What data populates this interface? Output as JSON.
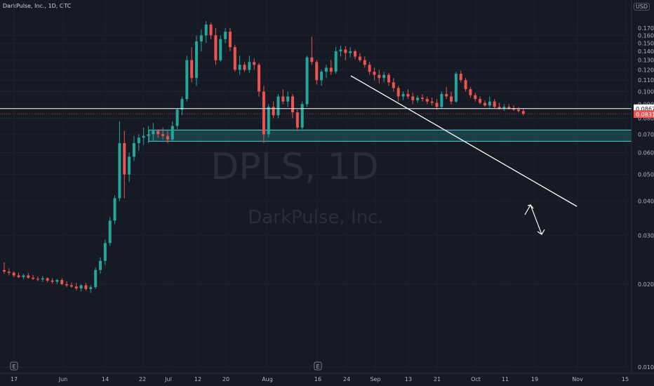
{
  "header": {
    "title": "DarkPulse, Inc., 1D, OTC"
  },
  "currency": "USD",
  "watermark": {
    "symbol": "DPLS, 1D",
    "name": "DarkPulse, Inc."
  },
  "colors": {
    "up": "#26a69a",
    "down": "#ef5350",
    "background": "#161a25",
    "zone": "#26a69a"
  },
  "chart_data": {
    "type": "candlestick",
    "y_scale": "log",
    "y_ticks": [
      "0.1700",
      "0.1600",
      "0.1500",
      "0.1400",
      "0.1300",
      "0.1200",
      "0.1100",
      "0.1000",
      "0.0900",
      "0.0800",
      "0.0700",
      "0.0600",
      "0.0500",
      "0.0400",
      "0.0300",
      "0.0200",
      "0.0100"
    ],
    "x_ticks": [
      "17",
      "Jun",
      "14",
      "22",
      "Jul",
      "12",
      "20",
      "Aug",
      "16",
      "24",
      "Sep",
      "13",
      "21",
      "Oct",
      "11",
      "19",
      "Nov",
      "15"
    ],
    "events": [
      "E",
      "E"
    ],
    "price_labels": {
      "horizontal": "0.0867",
      "last": "0.0831"
    },
    "support_zone": {
      "top": 0.0725,
      "bottom": 0.066
    },
    "ohlc": [
      [
        0.0225,
        0.024,
        0.0218,
        0.0222
      ],
      [
        0.0222,
        0.0228,
        0.0215,
        0.022
      ],
      [
        0.022,
        0.0223,
        0.0212,
        0.0215
      ],
      [
        0.0215,
        0.022,
        0.021,
        0.0212
      ],
      [
        0.0212,
        0.0218,
        0.0208,
        0.0215
      ],
      [
        0.0215,
        0.0219,
        0.0209,
        0.0211
      ],
      [
        0.0211,
        0.0216,
        0.0207,
        0.0209
      ],
      [
        0.0209,
        0.0213,
        0.0205,
        0.0208
      ],
      [
        0.0208,
        0.0214,
        0.0204,
        0.021
      ],
      [
        0.021,
        0.0212,
        0.0203,
        0.0206
      ],
      [
        0.0206,
        0.021,
        0.0201,
        0.0204
      ],
      [
        0.0204,
        0.0209,
        0.02,
        0.0207
      ],
      [
        0.0207,
        0.021,
        0.0198,
        0.02
      ],
      [
        0.02,
        0.0205,
        0.0195,
        0.0198
      ],
      [
        0.0198,
        0.0203,
        0.0194,
        0.0196
      ],
      [
        0.0196,
        0.0202,
        0.019,
        0.0193
      ],
      [
        0.0193,
        0.02,
        0.0188,
        0.0198
      ],
      [
        0.0198,
        0.0202,
        0.0189,
        0.0192
      ],
      [
        0.0192,
        0.0198,
        0.0186,
        0.0195
      ],
      [
        0.0195,
        0.023,
        0.0192,
        0.0225
      ],
      [
        0.0225,
        0.025,
        0.0218,
        0.0243
      ],
      [
        0.0243,
        0.029,
        0.0235,
        0.0282
      ],
      [
        0.0282,
        0.035,
        0.0275,
        0.034
      ],
      [
        0.034,
        0.042,
        0.033,
        0.041
      ],
      [
        0.041,
        0.078,
        0.04,
        0.065
      ],
      [
        0.065,
        0.072,
        0.041,
        0.05
      ],
      [
        0.05,
        0.06,
        0.047,
        0.058
      ],
      [
        0.058,
        0.069,
        0.056,
        0.065
      ],
      [
        0.065,
        0.07,
        0.061,
        0.068
      ],
      [
        0.068,
        0.074,
        0.064,
        0.069
      ],
      [
        0.069,
        0.075,
        0.065,
        0.07
      ],
      [
        0.07,
        0.077,
        0.066,
        0.072
      ],
      [
        0.072,
        0.073,
        0.068,
        0.07
      ],
      [
        0.07,
        0.074,
        0.067,
        0.069
      ],
      [
        0.069,
        0.072,
        0.065,
        0.067
      ],
      [
        0.067,
        0.078,
        0.066,
        0.075
      ],
      [
        0.075,
        0.087,
        0.073,
        0.086
      ],
      [
        0.086,
        0.096,
        0.082,
        0.094
      ],
      [
        0.094,
        0.135,
        0.092,
        0.13
      ],
      [
        0.13,
        0.145,
        0.108,
        0.112
      ],
      [
        0.112,
        0.16,
        0.105,
        0.152
      ],
      [
        0.152,
        0.168,
        0.14,
        0.16
      ],
      [
        0.16,
        0.18,
        0.15,
        0.175
      ],
      [
        0.175,
        0.178,
        0.155,
        0.16
      ],
      [
        0.16,
        0.17,
        0.125,
        0.13
      ],
      [
        0.13,
        0.16,
        0.128,
        0.155
      ],
      [
        0.155,
        0.17,
        0.15,
        0.165
      ],
      [
        0.165,
        0.17,
        0.14,
        0.145
      ],
      [
        0.145,
        0.148,
        0.118,
        0.12
      ],
      [
        0.12,
        0.135,
        0.115,
        0.125
      ],
      [
        0.125,
        0.128,
        0.118,
        0.12
      ],
      [
        0.12,
        0.135,
        0.117,
        0.128
      ],
      [
        0.128,
        0.132,
        0.12,
        0.125
      ],
      [
        0.125,
        0.127,
        0.096,
        0.1
      ],
      [
        0.1,
        0.105,
        0.065,
        0.07
      ],
      [
        0.07,
        0.09,
        0.068,
        0.088
      ],
      [
        0.088,
        0.092,
        0.08,
        0.082
      ],
      [
        0.082,
        0.098,
        0.08,
        0.096
      ],
      [
        0.096,
        0.102,
        0.09,
        0.092
      ],
      [
        0.092,
        0.1,
        0.088,
        0.096
      ],
      [
        0.096,
        0.098,
        0.08,
        0.084
      ],
      [
        0.084,
        0.086,
        0.072,
        0.074
      ],
      [
        0.074,
        0.092,
        0.073,
        0.09
      ],
      [
        0.09,
        0.135,
        0.088,
        0.133
      ],
      [
        0.133,
        0.158,
        0.125,
        0.128
      ],
      [
        0.128,
        0.13,
        0.106,
        0.11
      ],
      [
        0.11,
        0.12,
        0.105,
        0.118
      ],
      [
        0.118,
        0.125,
        0.112,
        0.122
      ],
      [
        0.122,
        0.13,
        0.115,
        0.118
      ],
      [
        0.118,
        0.145,
        0.116,
        0.14
      ],
      [
        0.14,
        0.147,
        0.134,
        0.142
      ],
      [
        0.142,
        0.146,
        0.13,
        0.138
      ],
      [
        0.138,
        0.145,
        0.133,
        0.14
      ],
      [
        0.14,
        0.142,
        0.131,
        0.134
      ],
      [
        0.134,
        0.138,
        0.128,
        0.13
      ],
      [
        0.13,
        0.134,
        0.122,
        0.125
      ],
      [
        0.125,
        0.128,
        0.115,
        0.118
      ],
      [
        0.118,
        0.122,
        0.11,
        0.115
      ],
      [
        0.115,
        0.12,
        0.107,
        0.112
      ],
      [
        0.112,
        0.118,
        0.108,
        0.115
      ],
      [
        0.115,
        0.117,
        0.105,
        0.108
      ],
      [
        0.108,
        0.112,
        0.1,
        0.103
      ],
      [
        0.103,
        0.105,
        0.092,
        0.096
      ],
      [
        0.096,
        0.1,
        0.093,
        0.098
      ],
      [
        0.098,
        0.102,
        0.094,
        0.096
      ],
      [
        0.096,
        0.099,
        0.09,
        0.093
      ],
      [
        0.093,
        0.097,
        0.091,
        0.095
      ],
      [
        0.095,
        0.098,
        0.092,
        0.094
      ],
      [
        0.094,
        0.096,
        0.09,
        0.092
      ],
      [
        0.092,
        0.095,
        0.089,
        0.091
      ],
      [
        0.091,
        0.094,
        0.086,
        0.088
      ],
      [
        0.088,
        0.1,
        0.087,
        0.098
      ],
      [
        0.098,
        0.104,
        0.094,
        0.096
      ],
      [
        0.096,
        0.1,
        0.09,
        0.092
      ],
      [
        0.092,
        0.118,
        0.091,
        0.116
      ],
      [
        0.116,
        0.119,
        0.108,
        0.11
      ],
      [
        0.11,
        0.112,
        0.1,
        0.102
      ],
      [
        0.102,
        0.104,
        0.095,
        0.097
      ],
      [
        0.097,
        0.099,
        0.092,
        0.094
      ],
      [
        0.094,
        0.096,
        0.09,
        0.091
      ],
      [
        0.091,
        0.093,
        0.088,
        0.089
      ],
      [
        0.089,
        0.096,
        0.087,
        0.092
      ],
      [
        0.092,
        0.094,
        0.087,
        0.088
      ],
      [
        0.088,
        0.091,
        0.086,
        0.087
      ],
      [
        0.087,
        0.09,
        0.085,
        0.088
      ],
      [
        0.088,
        0.09,
        0.086,
        0.087
      ],
      [
        0.087,
        0.089,
        0.085,
        0.086
      ],
      [
        0.086,
        0.088,
        0.084,
        0.085
      ],
      [
        0.085,
        0.087,
        0.082,
        0.0831
      ]
    ]
  }
}
